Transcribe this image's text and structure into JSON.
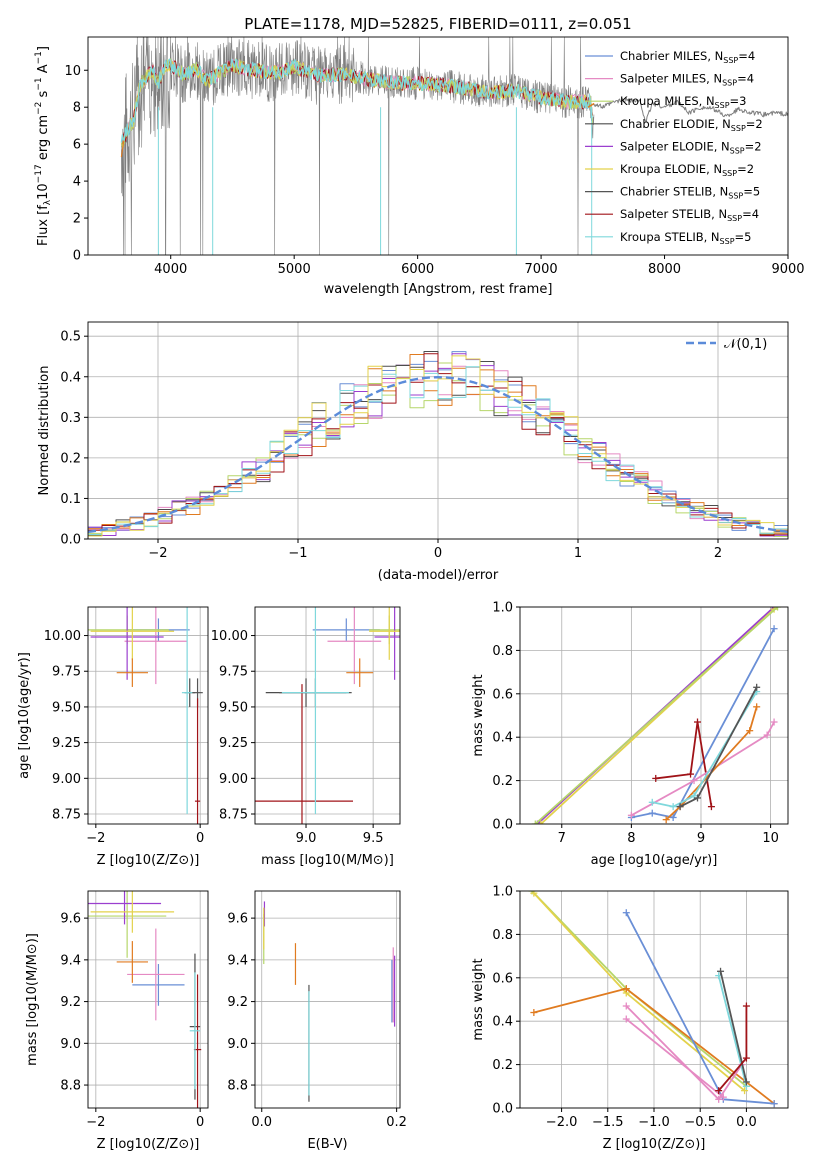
{
  "title": "PLATE=1178, MJD=52825, FIBERID=0111, z=0.051",
  "colors": {
    "chabrier_miles": "#6a8fd6",
    "salpeter_miles": "#e58ac3",
    "kroupa_miles": "#b6d66a",
    "chabrier_elodie": "#4d4d4d",
    "salpeter_elodie": "#9b3fcf",
    "kroupa_elodie": "#e3d24b",
    "chabrier_stelib": "#555555",
    "salpeter_stelib": "#a01318",
    "kroupa_stelib": "#7fd8dc",
    "orange": "#e07b20",
    "data_gray": "#7f7f7f"
  },
  "chart_data": [
    {
      "id": "spectrum",
      "type": "line",
      "title": "PLATE=1178, MJD=52825, FIBERID=0111, z=0.051",
      "xlabel": "wavelength [Angstrom, rest frame]",
      "ylabel": "Flux [f_λ 10^-17 erg cm^-2 s^-1 A^-1]",
      "xlim": [
        3330,
        9000
      ],
      "ylim": [
        0,
        11.8
      ],
      "xticks": [
        4000,
        5000,
        6000,
        7000,
        8000,
        9000
      ],
      "yticks": [
        0,
        2,
        4,
        6,
        8,
        10
      ],
      "legend": [
        {
          "label": "Chabrier MILES, N_SSP=4",
          "color": "#6a8fd6"
        },
        {
          "label": "Salpeter MILES, N_SSP=4",
          "color": "#e58ac3"
        },
        {
          "label": "Kroupa MILES, N_SSP=3",
          "color": "#b6d66a"
        },
        {
          "label": "Chabrier ELODIE, N_SSP=2",
          "color": "#4d4d4d"
        },
        {
          "label": "Salpeter ELODIE, N_SSP=2",
          "color": "#9b3fcf"
        },
        {
          "label": "Kroupa ELODIE, N_SSP=2",
          "color": "#e3d24b"
        },
        {
          "label": "Chabrier STELIB, N_SSP=5",
          "color": "#555555"
        },
        {
          "label": "Salpeter STELIB, N_SSP=4",
          "color": "#a01318"
        },
        {
          "label": "Kroupa STELIB, N_SSP=5",
          "color": "#7fd8dc"
        }
      ],
      "legend_placement": "right",
      "model_envelope": {
        "x": [
          3600,
          3650,
          3700,
          3750,
          3800,
          3850,
          3900,
          3950,
          4000,
          4100,
          4200,
          4300,
          4400,
          4500,
          4600,
          4700,
          4800,
          4900,
          5000,
          5200,
          5400,
          5600,
          5800,
          6000,
          6200,
          6400,
          6600,
          6800,
          7000,
          7200,
          7400,
          7420
        ],
        "y": [
          6.0,
          6.8,
          7.3,
          9.2,
          9.6,
          10.0,
          9.3,
          10.2,
          10.3,
          9.8,
          10.1,
          9.4,
          9.9,
          10.3,
          10.1,
          10.0,
          9.9,
          9.9,
          10.2,
          9.7,
          9.8,
          9.5,
          9.3,
          9.3,
          9.2,
          9.0,
          8.8,
          8.9,
          8.5,
          8.3,
          8.3,
          7.0
        ]
      },
      "orange_extension": {
        "x": [
          7420,
          7500,
          7600,
          7700,
          7800,
          7850,
          7900,
          8000,
          8100,
          8200,
          8300,
          8400,
          8500,
          8600,
          8700,
          8800,
          8900,
          9000
        ],
        "y": [
          8.2,
          8.0,
          8.3,
          8.4,
          8.3,
          7.2,
          8.2,
          8.0,
          8.3,
          7.7,
          8.0,
          7.9,
          7.5,
          7.9,
          7.7,
          7.6,
          7.7,
          7.6
        ]
      },
      "data_range": [
        3600,
        7430
      ]
    },
    {
      "id": "residuals",
      "type": "histogram",
      "xlabel": "(data-model)/error",
      "ylabel": "Normed distribution",
      "xlim": [
        -2.5,
        2.5
      ],
      "ylim": [
        0,
        0.535
      ],
      "xticks": [
        -2,
        -1,
        0,
        1,
        2
      ],
      "yticks": [
        0.0,
        0.1,
        0.2,
        0.3,
        0.4,
        0.5
      ],
      "legend": [
        {
          "label": "𝒩(0,1)",
          "color": "#5b8bd9",
          "style": "dashed"
        }
      ],
      "legend_placement": "top-right",
      "bin_width": 0.1
    },
    {
      "id": "age_vs_Z",
      "type": "scatter",
      "xlabel": "Z [log10(Z/Z⊙)]",
      "ylabel": "age  [log10(age/yr)]",
      "xlim": [
        -2.15,
        0.15
      ],
      "ylim": [
        8.68,
        10.2
      ],
      "xticks": [
        -2,
        0
      ],
      "yticks": [
        8.75,
        9.0,
        9.25,
        9.5,
        9.75,
        10.0
      ],
      "points": [
        {
          "series": "Chabrier MILES",
          "x": -0.8,
          "y": 10.04,
          "xerr": 0.6,
          "yerr": 0.08
        },
        {
          "series": "Salpeter MILES",
          "x": -0.85,
          "y": 9.96,
          "xerr": 0.6,
          "yerr": 0.3
        },
        {
          "series": "Kroupa MILES",
          "x": -1.4,
          "y": 10.04,
          "xerr": 0.8,
          "yerr": 0.1
        },
        {
          "series": "Chabrier ELODIE",
          "x": -0.2,
          "y": 9.6,
          "xerr": 0.1,
          "yerr": 0.1
        },
        {
          "series": "Salpeter ELODIE",
          "x": -1.4,
          "y": 9.99,
          "xerr": 0.7,
          "yerr": 0.3
        },
        {
          "series": "Kroupa ELODIE",
          "x": -1.3,
          "y": 10.03,
          "xerr": 0.8,
          "yerr": 0.2
        },
        {
          "series": "Chabrier STELIB",
          "x": -0.05,
          "y": 9.6,
          "xerr": 0.1,
          "yerr": 0.1
        },
        {
          "series": "Salpeter STELIB",
          "x": -0.05,
          "y": 8.84,
          "xerr": 0.05,
          "yerr": 0.72
        },
        {
          "series": "Kroupa STELIB",
          "x": -0.25,
          "y": 9.6,
          "xerr": 0.1,
          "yerr": 0.85
        },
        {
          "series": "orange",
          "x": -1.3,
          "y": 9.74,
          "xerr": 0.3,
          "yerr": 0.1
        }
      ]
    },
    {
      "id": "age_vs_mass",
      "type": "scatter",
      "xlabel": "mass [log10(M/M⊙)]",
      "ylabel": "",
      "xlim": [
        8.62,
        9.7
      ],
      "ylim": [
        8.68,
        10.2
      ],
      "xticks": [
        9.0,
        9.5
      ],
      "yticks": [
        8.75,
        9.0,
        9.25,
        9.5,
        9.75,
        10.0
      ],
      "points": [
        {
          "series": "Chabrier MILES",
          "x": 9.3,
          "y": 10.04,
          "xerr": 0.25,
          "yerr": 0.08
        },
        {
          "series": "Salpeter MILES",
          "x": 9.36,
          "y": 9.96,
          "xerr": 0.2,
          "yerr": 0.3
        },
        {
          "series": "Kroupa MILES",
          "x": 9.62,
          "y": 10.04,
          "xerr": 0.15,
          "yerr": 0.1
        },
        {
          "series": "Chabrier ELODIE",
          "x": 9.0,
          "y": 9.6,
          "xerr": 0.3,
          "yerr": 0.1
        },
        {
          "series": "Salpeter ELODIE",
          "x": 9.66,
          "y": 9.99,
          "xerr": 0.15,
          "yerr": 0.3
        },
        {
          "series": "Kroupa ELODIE",
          "x": 9.62,
          "y": 10.03,
          "xerr": 0.15,
          "yerr": 0.2
        },
        {
          "series": "Chabrier STELIB",
          "x": 9.07,
          "y": 9.6,
          "xerr": 0.27,
          "yerr": 0.1
        },
        {
          "series": "Salpeter STELIB",
          "x": 8.97,
          "y": 8.84,
          "xerr": 0.38,
          "yerr": 0.82
        },
        {
          "series": "Kroupa STELIB",
          "x": 9.07,
          "y": 9.6,
          "xerr": 0.25,
          "yerr": 0.85
        },
        {
          "series": "orange",
          "x": 9.4,
          "y": 9.74,
          "xerr": 0.1,
          "yerr": 0.1
        }
      ]
    },
    {
      "id": "massweight_vs_age",
      "type": "line",
      "xlabel": "age  [log10(age/yr)]",
      "ylabel": "mass weight",
      "xlim": [
        6.4,
        10.25
      ],
      "ylim": [
        0,
        1.0
      ],
      "xticks": [
        7,
        8,
        9,
        10
      ],
      "yticks": [
        0.0,
        0.2,
        0.4,
        0.6,
        0.8,
        1.0
      ],
      "series": [
        {
          "name": "Salpeter ELODIE",
          "x": [
            6.65,
            10.05
          ],
          "y": [
            0.0,
            1.0
          ]
        },
        {
          "name": "Kroupa ELODIE",
          "x": [
            6.7,
            10.05
          ],
          "y": [
            0.0,
            0.99
          ]
        },
        {
          "name": "Kroupa MILES",
          "x": [
            6.62,
            10.1
          ],
          "y": [
            0.0,
            1.0
          ]
        },
        {
          "name": "Chabrier MILES",
          "x": [
            8.0,
            8.3,
            8.6,
            10.05
          ],
          "y": [
            0.03,
            0.05,
            0.03,
            0.9
          ]
        },
        {
          "name": "Salpeter STELIB",
          "x": [
            8.35,
            8.85,
            8.95,
            9.15
          ],
          "y": [
            0.21,
            0.23,
            0.47,
            0.08
          ]
        },
        {
          "name": "Salpeter MILES",
          "x": [
            8.0,
            8.9,
            9.95,
            10.05
          ],
          "y": [
            0.04,
            0.2,
            0.41,
            0.47
          ]
        },
        {
          "name": "orange",
          "x": [
            8.5,
            8.7,
            9.7,
            9.8
          ],
          "y": [
            0.02,
            0.08,
            0.43,
            0.54
          ]
        },
        {
          "name": "Kroupa STELIB",
          "x": [
            8.3,
            8.6,
            8.9,
            9.8
          ],
          "y": [
            0.1,
            0.08,
            0.13,
            0.61
          ]
        },
        {
          "name": "Chabrier STELIB",
          "x": [
            8.7,
            8.95,
            9.8
          ],
          "y": [
            0.08,
            0.12,
            0.63
          ]
        }
      ]
    },
    {
      "id": "mass_vs_Z",
      "type": "scatter",
      "xlabel": "Z [log10(Z/Z⊙)]",
      "ylabel": "mass [log10(M/M⊙)]",
      "xlim": [
        -2.15,
        0.15
      ],
      "ylim": [
        8.69,
        9.73
      ],
      "xticks": [
        -2,
        0
      ],
      "yticks": [
        8.8,
        9.0,
        9.2,
        9.4,
        9.6
      ],
      "points": [
        {
          "series": "Chabrier MILES",
          "x": -0.8,
          "y": 9.28,
          "xerr": 0.5,
          "yerr": 0.1
        },
        {
          "series": "Salpeter MILES",
          "x": -0.85,
          "y": 9.33,
          "xerr": 0.55,
          "yerr": 0.22
        },
        {
          "series": "Kroupa MILES",
          "x": -1.4,
          "y": 9.61,
          "xerr": 0.75,
          "yerr": 0.2
        },
        {
          "series": "Chabrier ELODIE",
          "x": -0.1,
          "y": 9.08,
          "xerr": 0.1,
          "yerr": 0.35
        },
        {
          "series": "Salpeter ELODIE",
          "x": -1.45,
          "y": 9.67,
          "xerr": 0.7,
          "yerr": 0.1
        },
        {
          "series": "Kroupa ELODIE",
          "x": -1.3,
          "y": 9.63,
          "xerr": 0.8,
          "yerr": 0.1
        },
        {
          "series": "Salpeter STELIB",
          "x": -0.05,
          "y": 8.97,
          "xerr": 0.07,
          "yerr": 0.36
        },
        {
          "series": "Kroupa STELIB",
          "x": -0.1,
          "y": 9.06,
          "xerr": 0.1,
          "yerr": 0.28
        },
        {
          "series": "orange",
          "x": -1.3,
          "y": 9.39,
          "xerr": 0.3,
          "yerr": 0.1
        }
      ]
    },
    {
      "id": "mass_vs_EBV",
      "type": "scatter",
      "xlabel": "E(B-V)",
      "ylabel": "",
      "xlim": [
        -0.01,
        0.205
      ],
      "ylim": [
        8.69,
        9.73
      ],
      "xticks": [
        0.0,
        0.2
      ],
      "yticks": [
        8.8,
        9.0,
        9.2,
        9.4,
        9.6
      ],
      "points": [
        {
          "series": "Kroupa MILES",
          "x": 0.003,
          "y": 9.5,
          "yerr": 0.12
        },
        {
          "series": "Salpeter ELODIE",
          "x": 0.004,
          "y": 9.62,
          "yerr": 0.06
        },
        {
          "series": "Kroupa ELODIE",
          "x": 0.003,
          "y": 9.55,
          "yerr": 0.1
        },
        {
          "series": "orange",
          "x": 0.05,
          "y": 9.38,
          "yerr": 0.1
        },
        {
          "series": "Chabrier STELIB",
          "x": 0.07,
          "y": 9.0,
          "yerr": 0.28
        },
        {
          "series": "Kroupa STELIB",
          "x": 0.07,
          "y": 9.0,
          "yerr": 0.25
        },
        {
          "series": "Salpeter MILES",
          "x": 0.195,
          "y": 9.28,
          "yerr": 0.18
        },
        {
          "series": "Salpeter ELODIE",
          "x": 0.197,
          "y": 9.25,
          "yerr": 0.17
        },
        {
          "series": "Chabrier MILES",
          "x": 0.193,
          "y": 9.25,
          "yerr": 0.15
        }
      ]
    },
    {
      "id": "massweight_vs_Z",
      "type": "line",
      "xlabel": "Z [log10(Z/Z⊙)]",
      "ylabel": "mass weight",
      "xlim": [
        -2.45,
        0.45
      ],
      "ylim": [
        0,
        1.0
      ],
      "xticks": [
        -2.0,
        -1.5,
        -1.0,
        -0.5,
        0.0
      ],
      "yticks": [
        0.0,
        0.2,
        0.4,
        0.6,
        0.8,
        1.0
      ],
      "series": [
        {
          "name": "Kroupa MILES",
          "x": [
            -2.32,
            -1.3,
            0.0
          ],
          "y": [
            1.0,
            0.55,
            0.1
          ]
        },
        {
          "name": "Kroupa ELODIE",
          "x": [
            -2.3,
            -1.3,
            -0.02
          ],
          "y": [
            0.99,
            0.53,
            0.08
          ]
        },
        {
          "name": "orange",
          "x": [
            -2.3,
            -1.3,
            0.3
          ],
          "y": [
            0.44,
            0.55,
            0.02
          ]
        },
        {
          "name": "Chabrier MILES",
          "x": [
            -1.3,
            -0.25,
            0.3
          ],
          "y": [
            0.9,
            0.04,
            0.02
          ]
        },
        {
          "name": "Salpeter MILES",
          "x": [
            -1.3,
            -0.3,
            -0.05
          ],
          "y": [
            0.47,
            0.04,
            0.2
          ]
        },
        {
          "name": "Salpeter MILES b",
          "x": [
            -1.3,
            -0.25
          ],
          "y": [
            0.41,
            0.05
          ]
        },
        {
          "name": "Kroupa STELIB",
          "x": [
            -0.3,
            0.0
          ],
          "y": [
            0.61,
            0.1
          ]
        },
        {
          "name": "Chabrier STELIB",
          "x": [
            -0.28,
            0.0
          ],
          "y": [
            0.63,
            0.12
          ]
        },
        {
          "name": "Salpeter STELIB",
          "x": [
            -0.3,
            0.0,
            0.0
          ],
          "y": [
            0.08,
            0.23,
            0.47
          ]
        }
      ]
    }
  ]
}
